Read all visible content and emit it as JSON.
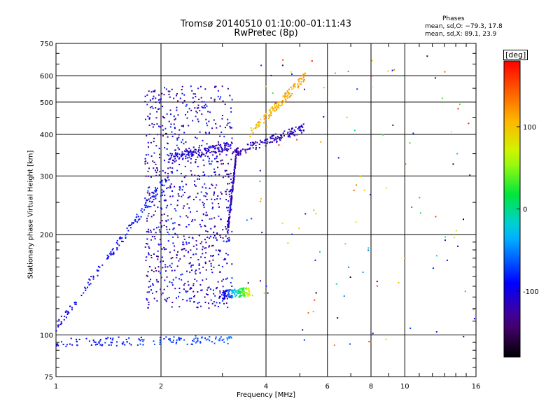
{
  "chart_data": {
    "type": "scatter",
    "title": "Tromsø 20140510 01:10:00–01:11:43",
    "subtitle": "RwPretec (8p)",
    "xlabel": "Frequency [MHz]",
    "ylabel": "Stationary phase Virtual Height [km]",
    "xscale": "log",
    "yscale": "log",
    "xlim": [
      1,
      16
    ],
    "ylim": [
      75,
      750
    ],
    "xticks": [
      1,
      2,
      4,
      6,
      8,
      10,
      16
    ],
    "yticks": [
      75,
      100,
      200,
      300,
      400,
      500,
      600,
      750
    ],
    "grid": true,
    "colorbar": {
      "label": "[deg]",
      "ticks": [
        100,
        0,
        -100
      ],
      "range": [
        -180,
        180
      ]
    },
    "phases_box": {
      "heading": "Phases",
      "line1": "mean, sd,O: −79.3, 17.8",
      "line2": "mean, sd,X:  89.1, 23.9"
    },
    "traces": [
      {
        "f0": 1.0,
        "f1": 3.2,
        "h0": 95,
        "h1": 97,
        "phase0": -95,
        "phase1": -60
      },
      {
        "f0": 2.1,
        "f1": 3.2,
        "h0": 340,
        "h1": 370,
        "phase0": -100,
        "phase1": -120
      },
      {
        "f0": 3.2,
        "f1": 5.2,
        "h0": 350,
        "h1": 420,
        "phase0": -120,
        "phase1": -110
      },
      {
        "f0": 3.1,
        "f1": 3.3,
        "h0": 200,
        "h1": 360,
        "phase0": -115,
        "phase1": -120
      },
      {
        "f0": 1.0,
        "f1": 2.1,
        "h0": 105,
        "h1": 300,
        "phase0": -100,
        "phase1": -80
      },
      {
        "f0": 3.0,
        "f1": 3.6,
        "h0": 132,
        "h1": 135,
        "phase0": -110,
        "phase1": 80
      },
      {
        "f0": 3.6,
        "f1": 5.2,
        "h0": 400,
        "h1": 600,
        "phase0": 100,
        "phase1": 120
      }
    ]
  }
}
